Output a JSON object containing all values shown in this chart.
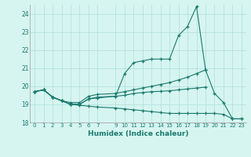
{
  "title": "",
  "xlabel": "Humidex (Indice chaleur)",
  "bg_color": "#d6f5f0",
  "line_color": "#1a7a6e",
  "grid_color": "#b0ddd8",
  "xlim": [
    -0.5,
    23.5
  ],
  "ylim": [
    18,
    24.5
  ],
  "yticks": [
    18,
    19,
    20,
    21,
    22,
    23,
    24
  ],
  "xticks": [
    0,
    1,
    2,
    3,
    4,
    5,
    6,
    7,
    9,
    10,
    11,
    12,
    13,
    14,
    15,
    16,
    17,
    18,
    19,
    20,
    21,
    22,
    23
  ],
  "series": [
    {
      "x": [
        0,
        1,
        2,
        3,
        4,
        5,
        6,
        7,
        9,
        10,
        11,
        12,
        13,
        14,
        15,
        16,
        17,
        18,
        19,
        20,
        21,
        22,
        23
      ],
      "y": [
        19.7,
        19.8,
        19.4,
        19.2,
        19.0,
        19.0,
        19.3,
        19.4,
        19.45,
        20.7,
        21.3,
        21.4,
        21.5,
        21.5,
        21.5,
        22.8,
        23.3,
        24.4,
        20.9,
        19.6,
        19.1,
        18.2,
        18.2
      ]
    },
    {
      "x": [
        0,
        1,
        2,
        3,
        4,
        5,
        6,
        7,
        9,
        10,
        11,
        12,
        13,
        14,
        15,
        16,
        17,
        18,
        19
      ],
      "y": [
        19.7,
        19.8,
        19.4,
        19.2,
        19.1,
        19.1,
        19.45,
        19.55,
        19.6,
        19.7,
        19.8,
        19.9,
        20.0,
        20.1,
        20.2,
        20.35,
        20.5,
        20.7,
        20.9
      ]
    },
    {
      "x": [
        0,
        1,
        2,
        3,
        4,
        5,
        6,
        7,
        9,
        10,
        11,
        12,
        13,
        14,
        15,
        16,
        17,
        18,
        19,
        20,
        21,
        22,
        23
      ],
      "y": [
        19.7,
        19.8,
        19.4,
        19.2,
        19.0,
        18.95,
        18.9,
        18.85,
        18.8,
        18.75,
        18.7,
        18.65,
        18.6,
        18.55,
        18.5,
        18.5,
        18.5,
        18.5,
        18.5,
        18.5,
        18.45,
        18.2,
        18.2
      ]
    },
    {
      "x": [
        0,
        1,
        2,
        3,
        4,
        5,
        6,
        7,
        9,
        10,
        11,
        12,
        13,
        14,
        15,
        16,
        17,
        18,
        19
      ],
      "y": [
        19.7,
        19.8,
        19.4,
        19.2,
        19.0,
        19.0,
        19.3,
        19.35,
        19.45,
        19.5,
        19.6,
        19.65,
        19.7,
        19.72,
        19.75,
        19.8,
        19.85,
        19.9,
        19.95
      ]
    }
  ]
}
